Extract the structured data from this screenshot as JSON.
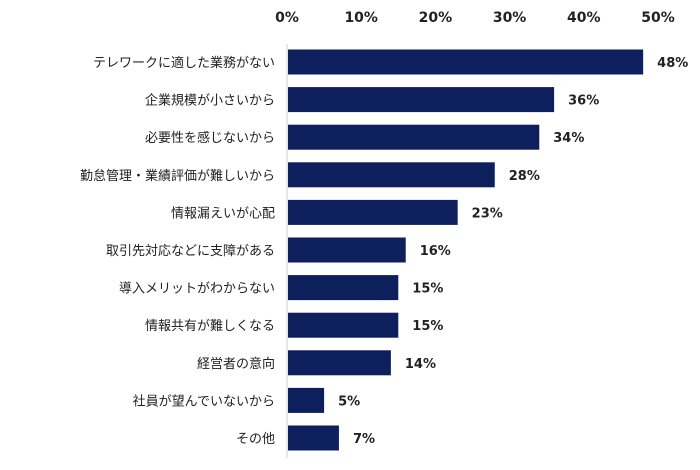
{
  "chart_data": {
    "type": "bar",
    "orientation": "horizontal",
    "title": "",
    "xlabel": "",
    "ylabel": "",
    "xlim": [
      0,
      50
    ],
    "x_ticks": [
      0,
      10,
      20,
      30,
      40,
      50
    ],
    "x_tick_labels": [
      "0%",
      "10%",
      "20%",
      "30%",
      "40%",
      "50%"
    ],
    "x_axis_position": "top",
    "grid": false,
    "bar_color": "#0d1f5c",
    "categories": [
      "テレワークに適した業務がない",
      "企業規模が小さいから",
      "必要性を感じないから",
      "勤怠管理・業績評価が難しいから",
      "情報漏えいが心配",
      "取引先対応などに支障がある",
      "導入メリットがわからない",
      "情報共有が難しくなる",
      "経営者の意向",
      "社員が望んでいないから",
      "その他"
    ],
    "values": [
      48,
      36,
      34,
      28,
      23,
      16,
      15,
      15,
      14,
      5,
      7
    ],
    "value_labels": [
      "48%",
      "36%",
      "34%",
      "28%",
      "23%",
      "16%",
      "15%",
      "15%",
      "14%",
      "5%",
      "7%"
    ]
  }
}
